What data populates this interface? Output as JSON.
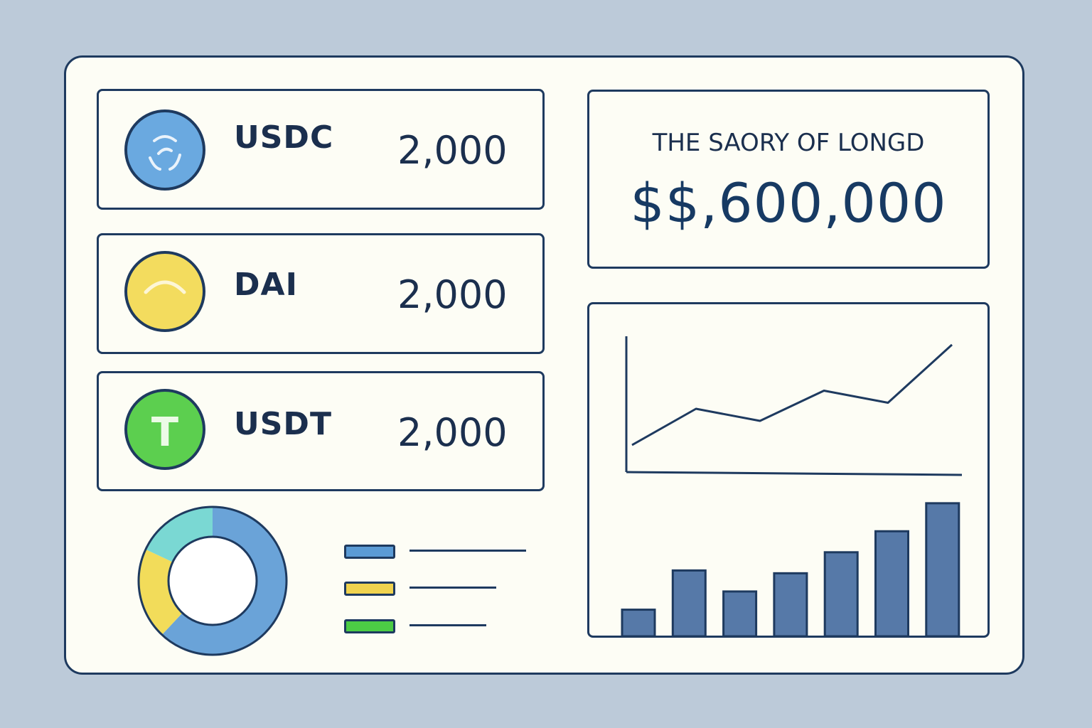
{
  "tokens": [
    {
      "name": "USDC",
      "amount": "2,000",
      "color": "#6aa9e0",
      "icon": "usdc-coin-icon"
    },
    {
      "name": "DAI",
      "amount": "2,000",
      "color": "#f3dc5e",
      "icon": "dai-coin-icon"
    },
    {
      "name": "USDT",
      "amount": "2,000",
      "color": "#5ccf4f",
      "icon": "usdt-coin-icon",
      "glyph": "T"
    }
  ],
  "summary": {
    "title": "THE SAORY OF LONGD",
    "value": "$$,600,000"
  },
  "allocation": {
    "slices": [
      {
        "token": "USDC",
        "value": 62,
        "color": "#6aa3d8"
      },
      {
        "token": "DAI",
        "value": 20,
        "color": "#f2dc5a"
      },
      {
        "token": "USDT",
        "value": 18,
        "color": "#7ad8d3"
      }
    ],
    "legend_colors": [
      "#5b9bd5",
      "#f0d34f",
      "#4ccc45"
    ]
  },
  "chart_data": [
    {
      "type": "line",
      "x": [
        0,
        1,
        2,
        3,
        4,
        5
      ],
      "values": [
        10,
        40,
        30,
        55,
        45,
        93
      ],
      "ylim": [
        0,
        100
      ]
    },
    {
      "type": "bar",
      "values": [
        19,
        47,
        32,
        45,
        60,
        75,
        95
      ],
      "ylim": [
        0,
        100
      ]
    }
  ],
  "colors": {
    "outline": "#1e3a5f",
    "bar": "#5679a8",
    "background": "#bccad9",
    "panel": "#fdfdf5"
  }
}
